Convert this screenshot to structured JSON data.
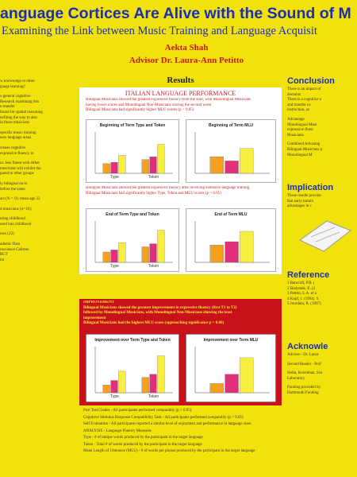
{
  "header": {
    "title": "anguage Cortices Are Alive with the Sound of M",
    "subtitle": "Examining the Link between Music Training and Language Acquisit",
    "author": "Aekta Shah",
    "advisor": "Advisor Dr. Laura-Ann Petitto"
  },
  "left_column": {
    "lines": [
      "w knowledge in other",
      "guage learning?",
      "",
      "o general cognitive",
      "Research examining this",
      "e transfer",
      "found for spatial reasoning",
      "nefiting the way to also",
      "in those musicians",
      "",
      "specific music training",
      "new language areas",
      "",
      "crease cognitive",
      "expressive fluency in",
      "",
      "ur: less fluent with either",
      "musicians will exhibit the",
      "pared to other groups",
      "",
      "ly bilingual on to",
      "before the same",
      "",
      "ars (N = 19, mean age 22",
      "",
      "d musicians (n=16);",
      "",
      "uring childhood",
      "ured into childhood",
      "",
      "ears (22)",
      "",
      "ademic Data",
      "roscience Callsten",
      "RCT",
      "im"
    ]
  },
  "results": {
    "heading": "Results",
    "panel_heading": "ITALIAN LANGUAGE PERFORMANCE",
    "intro": [
      "Bilingual Musicians showed the greatest expressive fluency from the start, with Monolingual Musicians",
      "having lower scores and Monolingual Non-Musicians scoring the second worst",
      "Bilingual Musicians had significantly higher MLU scores (p < 0.05)"
    ],
    "middle": [
      "Bilingual Musicians showed the greatest expressive fluency after receiving extensive language training.",
      "Bilingual Musicians had significantly higher Type, Token and MLU scores (p < 0.05)"
    ],
    "improvement": [
      "IMPROVEMENT",
      "Bilingual Musicians showed the greatest improvement in expressive fluency (first T1 to T2)",
      "followed by Monolingual Musicians, with Monolingual Non-Musicians showing the least",
      "improvement",
      "Bilingual Musicians had the highest MLU score (approaching significance p = 0.06)"
    ],
    "notes": [
      "Post Test Grades - All participants performed comparably (p > 0.05)",
      "Cognitive Stimulus Response Compatibility Task - All participants performed comparably (p > 0.05)",
      "Self Evaluation - All participants reported a similar level of enjoyment and performance in language class",
      "ANALYSIS - Language Fluency Measures",
      "Type - # of unique words produced by the participant in the target language",
      "Token - Total # of words produced by the participant in the target language",
      "Mean Length of Utterance (MLU) - # of words per phrase produced by the participant in the target language"
    ],
    "charts": [
      {
        "title": "Beginning of Term Type and Token",
        "categories": [
          "Type",
          "Token"
        ],
        "ylim": [
          0,
          60
        ],
        "series": [
          {
            "color": "#f4a020",
            "values": [
              14,
              20
            ]
          },
          {
            "color": "#e0307a",
            "values": [
              16,
              24
            ]
          },
          {
            "color": "#f8ee40",
            "values": [
              26,
              42
            ]
          }
        ]
      },
      {
        "title": "Beginning of Term MLU",
        "categories": [
          null
        ],
        "ylim": [
          0,
          10
        ],
        "series": [
          {
            "color": "#f4a020",
            "values": [
              4
            ]
          },
          {
            "color": "#e0307a",
            "values": [
              3
            ]
          },
          {
            "color": "#f8ee40",
            "values": [
              6
            ]
          }
        ]
      },
      {
        "title": "End of Term Type and Token",
        "categories": [
          "Type",
          "Token"
        ],
        "ylim": [
          0,
          80
        ],
        "series": [
          {
            "color": "#f4a020",
            "values": [
              20,
              30
            ]
          },
          {
            "color": "#e0307a",
            "values": [
              24,
              36
            ]
          },
          {
            "color": "#f8ee40",
            "values": [
              38,
              62
            ]
          }
        ]
      },
      {
        "title": "End of Term MLU",
        "categories": [
          null
        ],
        "ylim": [
          0,
          12
        ],
        "series": [
          {
            "color": "#f4a020",
            "values": [
              5
            ]
          },
          {
            "color": "#e0307a",
            "values": [
              6
            ]
          },
          {
            "color": "#f8ee40",
            "values": [
              9
            ]
          }
        ]
      },
      {
        "title": "Improvement over Term Type and Token",
        "categories": [
          "Type",
          "Token"
        ],
        "ylim": [
          0,
          30
        ],
        "series": [
          {
            "color": "#f4a020",
            "values": [
              5,
              10
            ]
          },
          {
            "color": "#e0307a",
            "values": [
              8,
              12
            ]
          },
          {
            "color": "#f8ee40",
            "values": [
              14,
              24
            ]
          }
        ]
      },
      {
        "title": "Improvement over Term MLU",
        "categories": [
          null
        ],
        "ylim": [
          0,
          5
        ],
        "series": [
          {
            "color": "#f4a020",
            "values": [
              1
            ]
          },
          {
            "color": "#e0307a",
            "values": [
              2
            ]
          },
          {
            "color": "#f8ee40",
            "values": [
              3.8
            ]
          }
        ]
      }
    ]
  },
  "right_column": {
    "sections": [
      {
        "heading": "Conclusion",
        "lines": [
          "There is an impact of",
          "domains",
          "There is a cognitive a",
          "and transfer ex",
          "instruction, as",
          "",
          "Advantage",
          "Monolingual Musi",
          "expressive fluen",
          "Musicians",
          "",
          "Combined Advantag",
          "Bilingual Musicians p",
          "Monolingual M"
        ]
      },
      {
        "heading": "Implication",
        "lines": [
          "These results provide",
          "that early trainin",
          "advantages in c"
        ]
      },
      {
        "heading": "Reference",
        "lines": [
          "1  Bancroft, P.B. (",
          "2  Bialystok, E. (2",
          "3  Petitto, L.A. et a",
          "4  Kopf, J. (1994). S",
          "5  Jourdain, R. (1997)"
        ]
      },
      {
        "heading": "Acknowle",
        "lines": [
          "Advisor - Dr. Laura",
          "",
          "Second Reader - Prof",
          "",
          "Sedia, Kovelman, Sco",
          "Laboratory",
          "",
          "Funding provided by",
          "Dartmouth Funding"
        ]
      }
    ]
  }
}
